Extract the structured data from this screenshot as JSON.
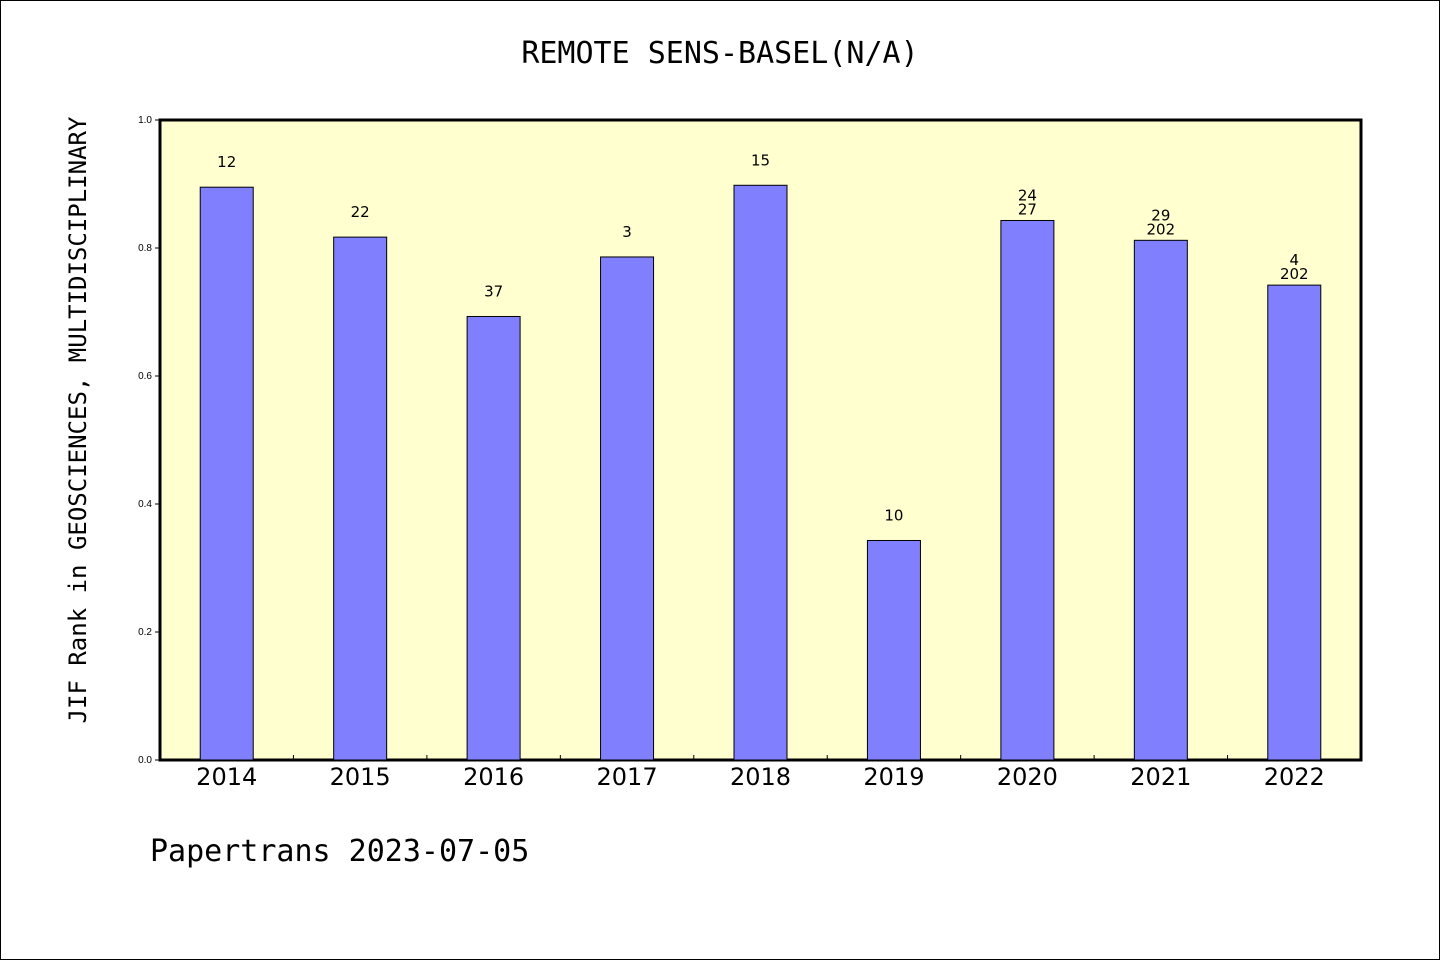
{
  "chart_data": {
    "type": "bar",
    "title": "REMOTE SENS-BASEL(N/A)",
    "ylabel": "JIF Rank in GEOSCIENCES, MULTIDISCIPLINARY",
    "xlabel": "",
    "ylim": [
      0,
      1.0
    ],
    "yticks": [
      "0.0",
      "0.2",
      "0.4",
      "0.6",
      "0.8",
      "1.0"
    ],
    "categories": [
      "2014",
      "2015",
      "2016",
      "2017",
      "2018",
      "2019",
      "2020",
      "2021",
      "2022"
    ],
    "values": [
      0.895,
      0.817,
      0.693,
      0.786,
      0.898,
      0.343,
      0.843,
      0.812,
      0.742
    ],
    "annotations": [
      [
        "12"
      ],
      [
        "22"
      ],
      [
        "37"
      ],
      [
        "3"
      ],
      [
        "15"
      ],
      [
        "10"
      ],
      [
        "24",
        "27"
      ],
      [
        "29",
        "202"
      ],
      [
        "4",
        "202"
      ]
    ],
    "colors": {
      "bar": "#8080ff",
      "plot_bg": "#ffffd0",
      "border": "#000000"
    },
    "grid": false
  },
  "footer": "Papertrans 2023-07-05"
}
